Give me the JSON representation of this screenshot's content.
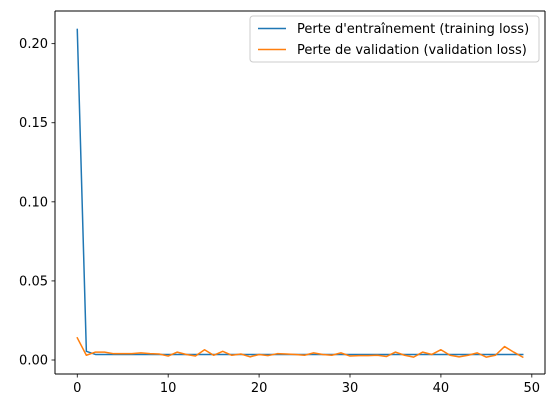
{
  "chart_data": {
    "type": "line",
    "title": "",
    "xlabel": "",
    "ylabel": "",
    "xlim": [
      -2.45,
      51.45
    ],
    "ylim": [
      -0.00885,
      0.22065
    ],
    "xticks": [
      0,
      10,
      20,
      30,
      40,
      50
    ],
    "yticks": [
      0.0,
      0.05,
      0.1,
      0.15,
      0.2
    ],
    "xtick_labels": [
      "0",
      "10",
      "20",
      "30",
      "40",
      "50"
    ],
    "ytick_labels": [
      "0.00",
      "0.05",
      "0.10",
      "0.15",
      "0.20"
    ],
    "grid": false,
    "legend_position": "top-right",
    "x": [
      0,
      1,
      2,
      3,
      4,
      5,
      6,
      7,
      8,
      9,
      10,
      11,
      12,
      13,
      14,
      15,
      16,
      17,
      18,
      19,
      20,
      21,
      22,
      23,
      24,
      25,
      26,
      27,
      28,
      29,
      30,
      31,
      32,
      33,
      34,
      35,
      36,
      37,
      38,
      39,
      40,
      41,
      42,
      43,
      44,
      45,
      46,
      47,
      48,
      49
    ],
    "series": [
      {
        "name": "Perte d'entraînement (training loss)",
        "color": "#1f77b4",
        "values": [
          0.209,
          0.0055,
          0.0035,
          0.0035,
          0.0035,
          0.0035,
          0.0035,
          0.0035,
          0.0035,
          0.0035,
          0.0035,
          0.0035,
          0.0035,
          0.0035,
          0.0035,
          0.0035,
          0.0035,
          0.0035,
          0.0035,
          0.0035,
          0.0035,
          0.0035,
          0.0035,
          0.0035,
          0.0035,
          0.0035,
          0.0035,
          0.0035,
          0.0035,
          0.0035,
          0.0035,
          0.0035,
          0.0035,
          0.0035,
          0.0035,
          0.0035,
          0.0035,
          0.0035,
          0.0035,
          0.0035,
          0.0035,
          0.0035,
          0.0035,
          0.0035,
          0.0035,
          0.0035,
          0.0035,
          0.0035,
          0.0035,
          0.0035
        ]
      },
      {
        "name": "Perte de validation (validation loss)",
        "color": "#ff7f0e",
        "values": [
          0.014,
          0.003,
          0.005,
          0.005,
          0.004,
          0.004,
          0.004,
          0.0045,
          0.004,
          0.0038,
          0.0025,
          0.005,
          0.0035,
          0.0025,
          0.0065,
          0.003,
          0.0055,
          0.003,
          0.0038,
          0.002,
          0.0035,
          0.0028,
          0.004,
          0.0038,
          0.0035,
          0.003,
          0.0045,
          0.0035,
          0.003,
          0.0045,
          0.0025,
          0.0028,
          0.0028,
          0.003,
          0.0022,
          0.005,
          0.003,
          0.0018,
          0.005,
          0.0035,
          0.0065,
          0.003,
          0.002,
          0.003,
          0.0045,
          0.0018,
          0.003,
          0.0085,
          0.005,
          0.0018
        ]
      }
    ]
  }
}
